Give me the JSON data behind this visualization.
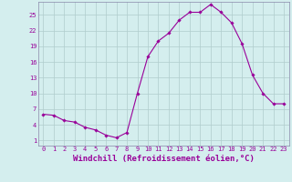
{
  "x": [
    0,
    1,
    2,
    3,
    4,
    5,
    6,
    7,
    8,
    9,
    10,
    11,
    12,
    13,
    14,
    15,
    16,
    17,
    18,
    19,
    20,
    21,
    22,
    23
  ],
  "y": [
    6.0,
    5.8,
    4.8,
    4.5,
    3.5,
    3.0,
    2.0,
    1.5,
    2.5,
    10.0,
    17.0,
    20.0,
    21.5,
    24.0,
    25.5,
    25.5,
    27.0,
    25.5,
    23.5,
    19.5,
    13.5,
    10.0,
    8.0,
    8.0
  ],
  "line_color": "#990099",
  "marker": "D",
  "marker_size": 1.8,
  "xlim": [
    -0.5,
    23.5
  ],
  "ylim": [
    0,
    27.5
  ],
  "yticks": [
    1,
    4,
    7,
    10,
    13,
    16,
    19,
    22,
    25
  ],
  "xticks": [
    0,
    1,
    2,
    3,
    4,
    5,
    6,
    7,
    8,
    9,
    10,
    11,
    12,
    13,
    14,
    15,
    16,
    17,
    18,
    19,
    20,
    21,
    22,
    23
  ],
  "bg_color": "#d4eeee",
  "grid_color": "#b0cccc",
  "tick_color": "#990099",
  "xlabel_color": "#990099",
  "tick_fontsize": 5.0,
  "xlabel_fontsize": 6.5,
  "xlabel": "Windchill (Refroidissement éolien,°C)",
  "line_width": 0.8,
  "spine_color": "#8888aa"
}
